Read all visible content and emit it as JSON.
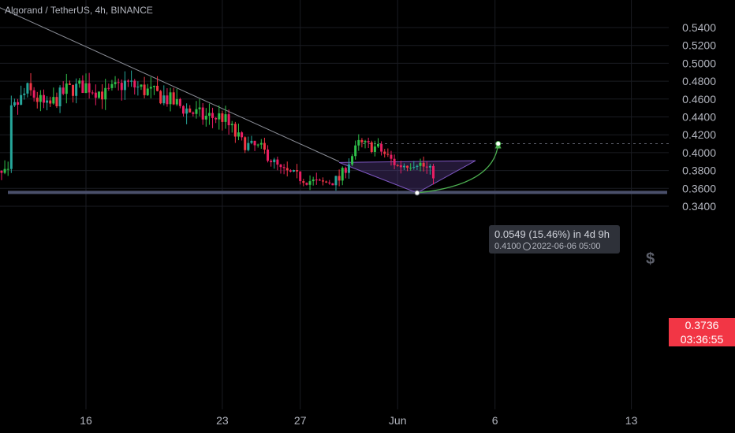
{
  "header": {
    "title": "Algorand / TetherUS, 4h, BINANCE"
  },
  "colors": {
    "up": "#26a69a",
    "upBright": "#2fbf4a",
    "down": "#f23645",
    "downPink": "#e91e63",
    "grid": "#1a1c22",
    "axisText": "#b2b5be",
    "bg": "#000000",
    "support": "#4a4f6a",
    "triangle": "#7e57c2",
    "arrow": "#4caf50"
  },
  "price_label": {
    "price": "0.3736",
    "countdown": "03:36:55"
  },
  "measure_tooltip": {
    "change": "0.0549 (15.46%) in 4d 9h",
    "target_price": "0.4100",
    "target_time": "2022-06-06  05:00"
  },
  "icons": {
    "dollar": "$"
  },
  "chart_data": {
    "type": "candlestick",
    "title": "Algorand / TetherUS, 4h, BINANCE",
    "y_ticks": [
      "0.5400",
      "0.5200",
      "0.5000",
      "0.4800",
      "0.4600",
      "0.4400",
      "0.4200",
      "0.4000",
      "0.3800",
      "0.3600",
      "0.3400"
    ],
    "x_ticks": [
      "16",
      "23",
      "27",
      "Jun",
      "6",
      "13"
    ],
    "ylim": [
      0.3345,
      0.5425
    ],
    "grid": true,
    "current_price": 0.3736,
    "close_path": [
      {
        "x": "May 12",
        "y": 0.44
      },
      {
        "x": "May 13",
        "y": 0.47
      },
      {
        "x": "May 14",
        "y": 0.45
      },
      {
        "x": "May 15",
        "y": 0.47
      },
      {
        "x": "May 16",
        "y": 0.475
      },
      {
        "x": "May 17",
        "y": 0.465
      },
      {
        "x": "May 18",
        "y": 0.478
      },
      {
        "x": "May 19",
        "y": 0.47
      },
      {
        "x": "May 20",
        "y": 0.462
      },
      {
        "x": "May 21",
        "y": 0.45
      },
      {
        "x": "May 22",
        "y": 0.44
      },
      {
        "x": "May 23",
        "y": 0.44
      },
      {
        "x": "May 24",
        "y": 0.41
      },
      {
        "x": "May 25",
        "y": 0.405
      },
      {
        "x": "May 26",
        "y": 0.38
      },
      {
        "x": "May 27",
        "y": 0.372
      },
      {
        "x": "May 28",
        "y": 0.365
      },
      {
        "x": "May 29",
        "y": 0.37
      },
      {
        "x": "May 30",
        "y": 0.41
      },
      {
        "x": "May 31",
        "y": 0.405
      },
      {
        "x": "Jun 1",
        "y": 0.385
      },
      {
        "x": "Jun 2",
        "y": 0.39
      },
      {
        "x": "Jun 3",
        "y": 0.3736
      }
    ],
    "support_level": 0.3555,
    "target_level": 0.41,
    "downtrend_line": [
      {
        "x": "May 11",
        "y": 0.568
      },
      {
        "x": "May 29",
        "y": 0.39
      }
    ],
    "triangle": [
      {
        "x": "May 29",
        "y": 0.389
      },
      {
        "x": "Jun 2",
        "y": 0.355
      },
      {
        "x": "Jun 5",
        "y": 0.391
      }
    ],
    "projection": [
      {
        "x": "Jun 2",
        "y": 0.355
      },
      {
        "x": "Jun 6",
        "y": 0.41
      }
    ]
  }
}
